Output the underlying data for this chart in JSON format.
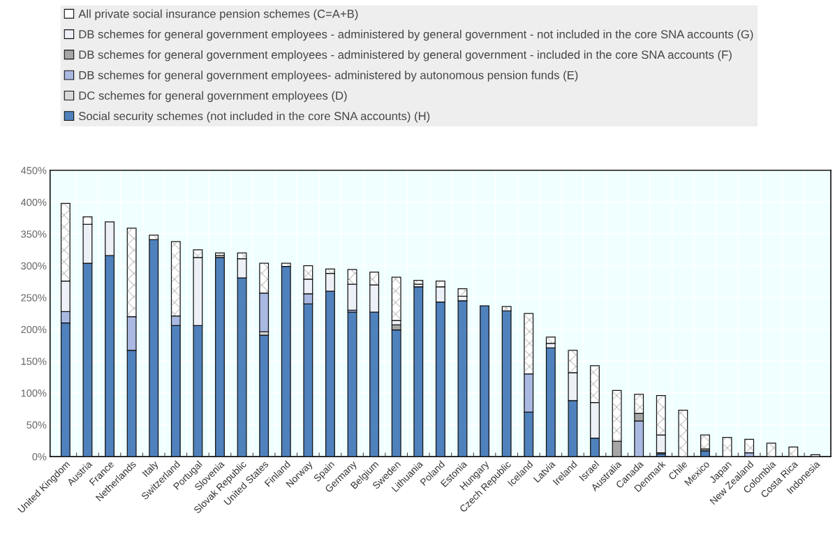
{
  "chart_data": {
    "type": "bar",
    "stacked": true,
    "legend": "top",
    "grid": true,
    "categories": [
      "United Kingdom",
      "Austria",
      "France",
      "Netherlands",
      "Italy",
      "Switzerland",
      "Portugal",
      "Slovenia",
      "Slovak Republic",
      "United States",
      "Finland",
      "Norway",
      "Spain",
      "Germany",
      "Belgium",
      "Sweden",
      "Lithuania",
      "Poland",
      "Estonia",
      "Hungary",
      "Czech Republic",
      "Iceland",
      "Latvia",
      "Ireland",
      "Israel",
      "Australia",
      "Canada",
      "Denmark",
      "Chile",
      "Mexico",
      "Japan",
      "New Zealand",
      "Colombia",
      "Costa Rica",
      "Indonesia"
    ],
    "series": [
      {
        "name": "Social security schemes (not included in the core SNA accounts) (H)",
        "color": "#4f81bd",
        "values": [
          210,
          304,
          316,
          167,
          341,
          206,
          206,
          313,
          281,
          191,
          299,
          240,
          260,
          227,
          227,
          199,
          267,
          243,
          245,
          237,
          229,
          70,
          171,
          88,
          29,
          0,
          null,
          4,
          0,
          9,
          0,
          0,
          0,
          0,
          0
        ]
      },
      {
        "name": "DC schemes for general government employees (D)",
        "color": "#d9d9d9",
        "values": [
          0,
          0,
          0,
          0,
          0,
          0,
          0,
          3,
          0,
          5,
          0,
          0,
          0,
          0,
          0,
          0,
          0,
          0,
          0,
          0,
          0,
          0,
          0,
          0,
          0,
          0,
          0,
          0,
          0,
          0,
          0,
          0,
          0,
          0,
          0
        ]
      },
      {
        "name": "DB schemes for general government employees- administered by autonomous pension funds (E)",
        "color": "#a9b9e2",
        "values": [
          18,
          0,
          0,
          53,
          0,
          15,
          0,
          0,
          0,
          61,
          0,
          16,
          0,
          3,
          0,
          0,
          0,
          0,
          0,
          0,
          0,
          60,
          0,
          0,
          0,
          0,
          56,
          0,
          0,
          0,
          0,
          6,
          0,
          0,
          0
        ]
      },
      {
        "name": "DB schemes for general government employees - administered by general government - included in the core SNA accounts (F)",
        "color": "#a6a6a6",
        "values": [
          0,
          0,
          0,
          null,
          0,
          0,
          0,
          0,
          0,
          0,
          0,
          0,
          0,
          0,
          0,
          8,
          0,
          0,
          0,
          0,
          0,
          0,
          0,
          0,
          0,
          24,
          12,
          2,
          0,
          3,
          0,
          0,
          0,
          0,
          0
        ]
      },
      {
        "name": "DB schemes for general government employees - administered by general government - not included in the core SNA accounts (G)",
        "color": "#eef0f8",
        "values": [
          48,
          61,
          53,
          0,
          0,
          0,
          107,
          0,
          30,
          0,
          0,
          23,
          28,
          41,
          43,
          7,
          4,
          24,
          7,
          0,
          0,
          0,
          7,
          44,
          56,
          0,
          0,
          28,
          0,
          0,
          0,
          0,
          0,
          0,
          3
        ]
      },
      {
        "name": "All private social insurance pension schemes (C=A+B)",
        "color": "#ffffff",
        "values": [
          122,
          12,
          0,
          139,
          7,
          117,
          12,
          4,
          9,
          47,
          5,
          21,
          7,
          23,
          20,
          68,
          6,
          9,
          12,
          0,
          7,
          95,
          10,
          35,
          58,
          80,
          30,
          62,
          73,
          22,
          30,
          21,
          21,
          15,
          0
        ]
      }
    ],
    "ylim": [
      0,
      450
    ],
    "yticks": [
      {
        "value": 0,
        "label": "0%"
      },
      {
        "value": 50,
        "label": "50%"
      },
      {
        "value": 100,
        "label": "100%"
      },
      {
        "value": 150,
        "label": "150%"
      },
      {
        "value": 200,
        "label": "200%"
      },
      {
        "value": 250,
        "label": "250%"
      },
      {
        "value": 300,
        "label": "300%"
      },
      {
        "value": 350,
        "label": "350%"
      },
      {
        "value": 400,
        "label": "400%"
      },
      {
        "value": 450,
        "label": "450%"
      }
    ]
  }
}
